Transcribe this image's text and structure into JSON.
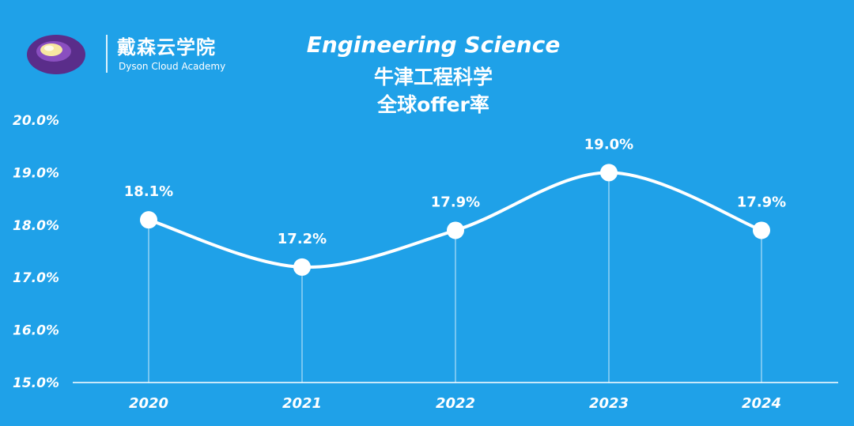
{
  "logo": {
    "name_cn": "戴森云学院",
    "name_en": "Dyson Cloud Academy",
    "colors": {
      "outer": "#5a2d8a",
      "inner": "#f7e7a1"
    }
  },
  "header": {
    "title_line1": "Engineering Science",
    "title_line2": "牛津工程科学",
    "title_line3": "全球offer率"
  },
  "chart_data": {
    "type": "line",
    "smooth": true,
    "categories": [
      "2020",
      "2021",
      "2022",
      "2023",
      "2024"
    ],
    "series": [
      {
        "values": [
          18.1,
          17.2,
          17.9,
          19.0,
          17.9
        ],
        "labels": [
          "18.1%",
          "17.2%",
          "17.9%",
          "19.0%",
          "17.9%"
        ]
      }
    ],
    "ylim": [
      15.0,
      20.0
    ],
    "yticks": [
      15.0,
      16.0,
      17.0,
      18.0,
      19.0,
      20.0
    ],
    "ytick_labels": [
      "15.0%",
      "16.0%",
      "17.0%",
      "18.0%",
      "19.0%",
      "20.0%"
    ],
    "xlabel": "",
    "ylabel": "",
    "grid": false,
    "colors": {
      "background": "#1fa1e8",
      "line": "#ffffff",
      "marker": "#ffffff"
    }
  }
}
